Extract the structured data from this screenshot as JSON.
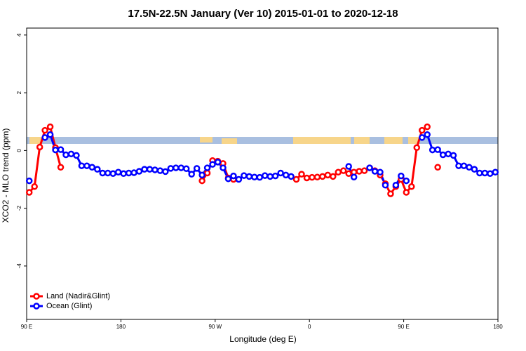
{
  "chart_data": {
    "type": "line",
    "title": "17.5N-22.5N January (Ver 10)   2015-01-01 to 2020-12-18",
    "x_label": "Longitude (deg E)",
    "y_label": "XCO2 - MLO trend (ppm)",
    "x": [
      92.5,
      97.5,
      102.5,
      107.5,
      112.5,
      117.5,
      122.5,
      127.5,
      132.5,
      137.5,
      142.5,
      147.5,
      152.5,
      157.5,
      162.5,
      167.5,
      172.5,
      177.5,
      182.5,
      187.5,
      192.5,
      197.5,
      202.5,
      207.5,
      212.5,
      217.5,
      222.5,
      227.5,
      232.5,
      237.5,
      242.5,
      247.5,
      252.5,
      257.5,
      262.5,
      267.5,
      272.5,
      277.5,
      282.5,
      287.5,
      292.5,
      297.5,
      302.5,
      307.5,
      312.5,
      317.5,
      322.5,
      327.5,
      332.5,
      337.5,
      342.5,
      347.5,
      352.5,
      357.5,
      362.5,
      367.5,
      372.5,
      377.5,
      382.5,
      387.5,
      392.5,
      397.5,
      402.5,
      407.5,
      412.5,
      417.5,
      422.5,
      427.5,
      432.5,
      437.5,
      442.5,
      447.5,
      452.5,
      457.5,
      462.5,
      467.5,
      472.5,
      477.5,
      482.5,
      487.5,
      492.5,
      497.5,
      502.5,
      507.5,
      512.5,
      517.5,
      522.5,
      527.5,
      532.5,
      537.5
    ],
    "series": [
      {
        "name": "Land (Nadir&Glint)",
        "color": "#ff0000",
        "values": [
          -1.45,
          -1.25,
          0.12,
          0.7,
          0.82,
          0.1,
          -0.58,
          null,
          null,
          null,
          null,
          null,
          null,
          null,
          null,
          null,
          null,
          null,
          null,
          null,
          null,
          null,
          null,
          null,
          null,
          null,
          null,
          null,
          null,
          null,
          null,
          null,
          null,
          -1.05,
          -0.78,
          -0.35,
          -0.37,
          -0.45,
          -0.95,
          -1.0,
          null,
          null,
          null,
          null,
          null,
          null,
          null,
          null,
          null,
          null,
          null,
          -1.0,
          -0.82,
          -0.95,
          -0.93,
          -0.92,
          -0.9,
          -0.85,
          -0.9,
          -0.75,
          -0.7,
          -0.8,
          -0.75,
          -0.72,
          -0.7,
          -0.6,
          -0.7,
          -0.85,
          -1.15,
          -1.5,
          -1.25,
          -1.0,
          -1.45,
          -1.25,
          0.1,
          0.7,
          0.82,
          null,
          -0.58,
          null,
          null,
          null,
          null,
          null,
          null,
          null,
          null,
          null,
          null,
          null
        ]
      },
      {
        "name": "Ocean (Glint)",
        "color": "#0000ff",
        "values": [
          -1.05,
          null,
          null,
          0.45,
          0.55,
          0.02,
          0.03,
          -0.15,
          -0.12,
          -0.17,
          -0.53,
          -0.53,
          -0.58,
          -0.65,
          -0.78,
          -0.78,
          -0.8,
          -0.75,
          -0.8,
          -0.78,
          -0.77,
          -0.72,
          -0.65,
          -0.65,
          -0.67,
          -0.7,
          -0.73,
          -0.62,
          -0.6,
          -0.6,
          -0.63,
          -0.82,
          -0.62,
          -0.85,
          -0.6,
          -0.48,
          -0.4,
          -0.6,
          -0.98,
          -0.88,
          -1.0,
          -0.87,
          -0.9,
          -0.92,
          -0.93,
          -0.87,
          -0.9,
          -0.88,
          -0.78,
          -0.85,
          -0.9,
          null,
          null,
          null,
          null,
          null,
          null,
          null,
          null,
          null,
          null,
          -0.55,
          -0.92,
          null,
          null,
          -0.6,
          -0.72,
          -0.75,
          -1.2,
          null,
          -1.2,
          -0.88,
          -1.05,
          null,
          null,
          0.45,
          0.55,
          0.02,
          0.03,
          -0.15,
          -0.12,
          -0.17,
          -0.53,
          -0.53,
          -0.58,
          -0.65,
          -0.78,
          -0.78,
          -0.8,
          -0.75
        ]
      }
    ],
    "xlim": [
      90,
      540
    ],
    "xticks": [
      {
        "value": 90,
        "label": "90 E"
      },
      180,
      {
        "value": 270,
        "label": "90 W"
      },
      {
        "value": 360,
        "label": "0"
      },
      {
        "value": 450,
        "label": "90 E"
      },
      {
        "value": 540,
        "label": "180"
      }
    ],
    "ylim": [
      -5.85,
      4.24
    ],
    "yticks": [
      -4,
      -2,
      0,
      2,
      4
    ],
    "legend": "bottom-left"
  }
}
